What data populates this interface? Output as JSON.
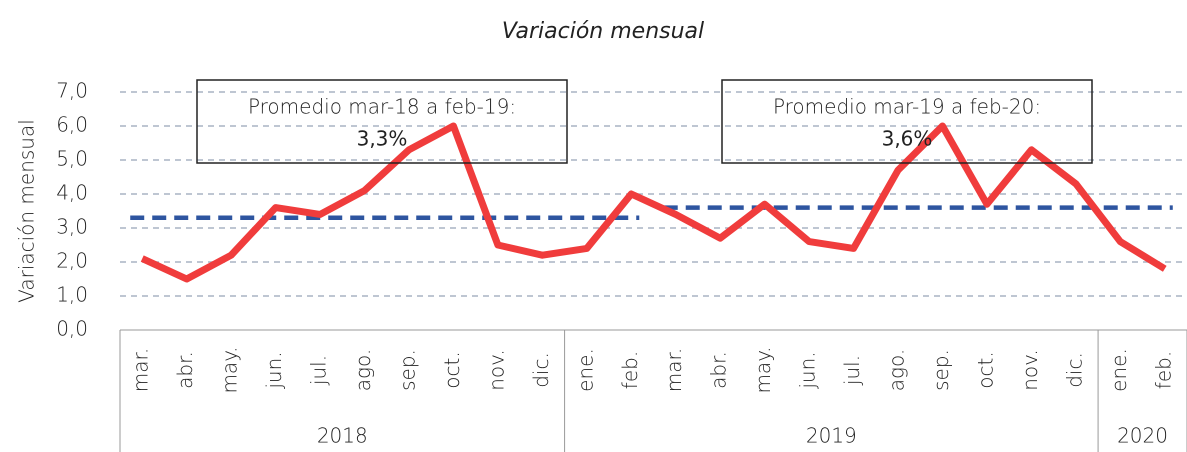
{
  "chart_data": {
    "type": "line",
    "subtitle": "Variación mensual",
    "y_label": "Variación mensual",
    "categories": [
      "mar.",
      "abr.",
      "may.",
      "jun.",
      "jul.",
      "ago.",
      "sep.",
      "oct.",
      "nov.",
      "dic.",
      "ene.",
      "feb.",
      "mar.",
      "abr.",
      "may.",
      "jun.",
      "jul.",
      "ago.",
      "sep.",
      "oct.",
      "nov.",
      "dic.",
      "ene.",
      "feb."
    ],
    "groups": [
      {
        "label": "2018",
        "count": 10
      },
      {
        "label": "2019",
        "count": 12
      },
      {
        "label": "2020",
        "count": 2
      }
    ],
    "series": [
      {
        "name": "Variación mensual",
        "color": "#f03c3c",
        "values": [
          2.1,
          1.5,
          2.2,
          3.6,
          3.4,
          4.1,
          5.3,
          6.0,
          2.5,
          2.2,
          2.4,
          4.0,
          3.4,
          2.7,
          3.7,
          2.6,
          2.4,
          4.7,
          6.0,
          3.7,
          5.3,
          4.3,
          2.6,
          1.8
        ]
      }
    ],
    "averages": [
      {
        "text": "Promedio mar-18 a feb-19:",
        "value": 3.3,
        "value_label": "3,3%",
        "color": "#2e55a0"
      },
      {
        "text": "Promedio mar-19 a feb-20:",
        "value": 3.6,
        "value_label": "3,6%",
        "color": "#2e55a0"
      }
    ],
    "ylim": [
      0,
      7
    ],
    "yticks": [
      {
        "value": 0,
        "label": "0,0"
      },
      {
        "value": 1,
        "label": "1,0"
      },
      {
        "value": 2,
        "label": "2,0"
      },
      {
        "value": 3,
        "label": "3,0"
      },
      {
        "value": 4,
        "label": "4,0"
      },
      {
        "value": 5,
        "label": "5,0"
      },
      {
        "value": 6,
        "label": "6,0"
      },
      {
        "value": 7,
        "label": "7,0"
      }
    ],
    "grid": true
  }
}
